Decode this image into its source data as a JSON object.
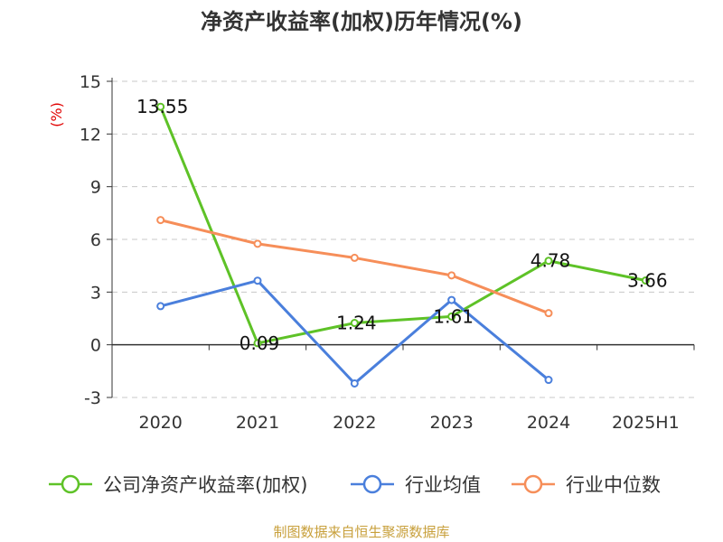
{
  "chart_data": {
    "type": "line",
    "title": "净资产收益率(加权)历年情况(%)",
    "ylabel": "(%)",
    "categories": [
      "2020",
      "2021",
      "2022",
      "2023",
      "2024",
      "2025H1"
    ],
    "ylim": [
      -3,
      15
    ],
    "yticks": [
      -3,
      0,
      3,
      6,
      9,
      12,
      15
    ],
    "grid": true,
    "legend_position": "bottom",
    "series": [
      {
        "name": "公司净资产收益率(加权)",
        "color": "#5ec227",
        "values": [
          13.55,
          0.09,
          1.24,
          1.61,
          4.78,
          3.66
        ],
        "labels": [
          "13.55",
          "0.09",
          "1.24",
          "1.61",
          "4.78",
          "3.66"
        ]
      },
      {
        "name": "行业均值",
        "color": "#4a7fdc",
        "values": [
          2.2,
          3.65,
          -2.2,
          2.55,
          -2.0,
          null
        ]
      },
      {
        "name": "行业中位数",
        "color": "#f68e59",
        "values": [
          7.1,
          5.75,
          4.95,
          3.95,
          1.8,
          null
        ]
      }
    ]
  },
  "footer": {
    "source": "制图数据来自恒生聚源数据库"
  }
}
